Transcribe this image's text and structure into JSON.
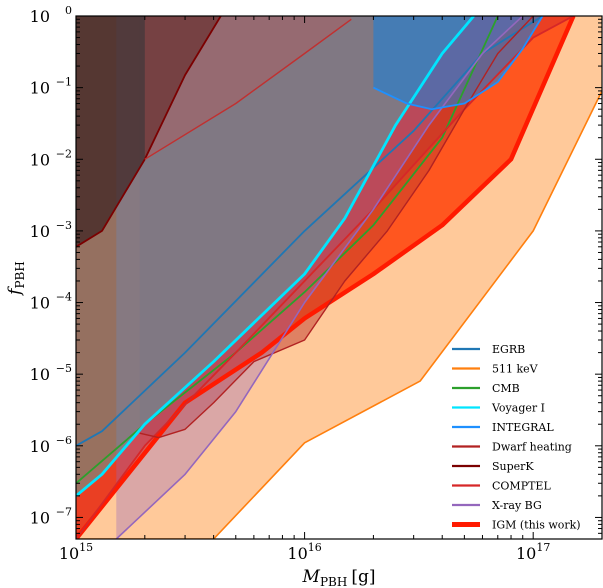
{
  "chart_data": {
    "type": "area",
    "title": "",
    "xlabel": "M",
    "xlabel_sub": "PBH",
    "xlabel_unit": "[g]",
    "ylabel": "f",
    "ylabel_sub": "PBH",
    "x_scale": "log",
    "y_scale": "log",
    "xlim": [
      1000000000000000.0,
      2e+17
    ],
    "ylim": [
      5e-08,
      1
    ],
    "grid": false,
    "legend_position": "bottom-right",
    "x_ticks": [
      {
        "value": 1000000000000000.0,
        "base": "10",
        "exp": "15"
      },
      {
        "value": 1e+16,
        "base": "10",
        "exp": "16"
      },
      {
        "value": 1e+17,
        "base": "10",
        "exp": "17"
      }
    ],
    "y_ticks": [
      {
        "value": 1e-07,
        "base": "10",
        "exp": "−7"
      },
      {
        "value": 1e-06,
        "base": "10",
        "exp": "−6"
      },
      {
        "value": 1e-05,
        "base": "10",
        "exp": "−5"
      },
      {
        "value": 0.0001,
        "base": "10",
        "exp": "−4"
      },
      {
        "value": 0.001,
        "base": "10",
        "exp": "−3"
      },
      {
        "value": 0.01,
        "base": "10",
        "exp": "−2"
      },
      {
        "value": 0.1,
        "base": "10",
        "exp": "−1"
      },
      {
        "value": 1,
        "base": "10",
        "exp": "0"
      }
    ],
    "series": [
      {
        "name": "511 keV",
        "color": "#ff7f0e",
        "fill_color": "#ffc99a",
        "fill_opacity": 1.0,
        "line_width": 1.6,
        "x": [
          1000000000000000.0,
          4000000000000000.0,
          1e+16,
          3.2e+16,
          1e+17,
          2e+17
        ],
        "y": [
          5e-08,
          5e-08,
          1.1e-06,
          8e-06,
          0.001,
          0.09
        ]
      },
      {
        "name": "CMB",
        "color": "#2ca02c",
        "fill_color": "#2ca02c",
        "fill_opacity": 0.45,
        "line_width": 1.8,
        "x": [
          1000000000000000.0,
          2000000000000000.0,
          5000000000000000.0,
          1e+16,
          2e+16,
          4e+16,
          7e+16
        ],
        "y": [
          3e-07,
          2e-06,
          2e-05,
          0.00014,
          0.0012,
          0.02,
          1
        ]
      },
      {
        "name": "EGRB",
        "color": "#1f77b4",
        "fill_color": "#1f77b4",
        "fill_opacity": 0.35,
        "line_width": 1.8,
        "x": [
          1000000000000000.0,
          1300000000000000.0,
          3000000000000000.0,
          1e+16,
          3e+16,
          6e+16,
          1.1e+17
        ],
        "y": [
          1e-06,
          1.6e-06,
          2e-05,
          0.001,
          0.025,
          0.3,
          1
        ]
      },
      {
        "name": "IGM (this work)",
        "color": "#ff1a00",
        "fill_color": "#ff3a00",
        "fill_opacity": 0.8,
        "line_width": 4.5,
        "x": [
          1000000000000000.0,
          3000000000000000.0,
          6500000000000000.0,
          1e+16,
          2e+16,
          4e+16,
          8e+16,
          1.5e+17
        ],
        "y": [
          5e-08,
          4e-06,
          2e-05,
          6e-05,
          0.00025,
          0.0012,
          0.01,
          1
        ]
      },
      {
        "name": "COMPTEL",
        "color": "#d62728",
        "fill_color": "#d62728",
        "fill_opacity": 0.5,
        "line_width": 1.8,
        "x": [
          1000000000000000.0,
          2000000000000000.0,
          5000000000000000.0,
          1e+16,
          2e+16,
          5e+16,
          1e+17,
          1.5e+17
        ],
        "y": [
          5e-08,
          1e-06,
          2e-05,
          0.0002,
          0.002,
          0.05,
          0.5,
          1
        ]
      },
      {
        "name": "Dwarf heating",
        "color": "#b22222",
        "fill_color": "#c0392b",
        "fill_opacity": 0.5,
        "line_width": 1.4,
        "x": [
          1900000000000000.0,
          2300000000000000.0,
          3000000000000000.0,
          4000000000000000.0,
          6000000000000000.0,
          1e+16,
          1.5e+16,
          2.3e+16,
          3.5e+16,
          5e+16,
          7e+16,
          1e+17
        ],
        "y": [
          1.5e-06,
          1.3e-06,
          1.7e-06,
          4e-06,
          1.5e-05,
          3e-05,
          0.0002,
          0.001,
          0.007,
          0.05,
          0.3,
          1
        ]
      },
      {
        "name": "X-ray BG",
        "color": "#9467bd",
        "fill_color": "#9467bd",
        "fill_opacity": 0.35,
        "line_width": 1.6,
        "x": [
          1500000000000000.0,
          3000000000000000.0,
          5000000000000000.0,
          1e+16,
          2e+16,
          3.5e+16,
          6e+16,
          9e+16
        ],
        "y": [
          5e-08,
          4e-07,
          3e-06,
          0.0001,
          0.002,
          0.03,
          0.3,
          1
        ]
      },
      {
        "name": "Voyager I",
        "color": "#00e5ff",
        "fill_color": "#2bc0c0",
        "fill_opacity": 0.4,
        "line_width": 2.8,
        "x": [
          1000000000000000.0,
          1300000000000000.0,
          2000000000000000.0,
          4000000000000000.0,
          1e+16,
          1.5e+16,
          2.5e+16,
          4e+16,
          5.5e+16
        ],
        "y": [
          2e-07,
          4e-07,
          2e-06,
          1.5e-05,
          0.00025,
          0.0015,
          0.03,
          0.3,
          1
        ]
      },
      {
        "name": "INTEGRAL",
        "color": "#1e90ff",
        "fill_color": "#1e7fd6",
        "fill_opacity": 0.6,
        "line_width": 1.8,
        "x": [
          2e+16,
          2.8e+16,
          3.6e+16,
          5e+16,
          7e+16,
          9e+16,
          1.1e+17
        ],
        "y": [
          0.1,
          0.06,
          0.05,
          0.06,
          0.12,
          0.35,
          1
        ]
      },
      {
        "name": "SuperK",
        "color": "#7b0000",
        "fill_color": "#3a2020",
        "fill_opacity": 0.7,
        "line_width": 1.8,
        "x": [
          1000000000000000.0,
          1300000000000000.0,
          2000000000000000.0,
          3000000000000000.0,
          4300000000000000.0
        ],
        "y": [
          0.0006,
          0.001,
          0.01,
          0.15,
          1
        ]
      },
      {
        "name": "COMPTEL",
        "color": "#c03030",
        "fill_color": "#c05050",
        "fill_opacity": 0.35,
        "line_width": 1.4,
        "x": [
          2000000000000000.0,
          5000000000000000.0,
          1e+16,
          1.6e+16
        ],
        "y": [
          0.01,
          0.06,
          0.3,
          0.9
        ]
      }
    ],
    "legend": [
      "EGRB",
      "511 keV",
      "CMB",
      "Voyager I",
      "INTEGRAL",
      "Dwarf heating",
      "SuperK",
      "COMPTEL",
      "X-ray BG",
      "IGM (this work)"
    ],
    "legend_colors": [
      "#1f77b4",
      "#ff7f0e",
      "#2ca02c",
      "#00e5ff",
      "#1e90ff",
      "#b22222",
      "#7b0000",
      "#d62728",
      "#9467bd",
      "#ff1a00"
    ]
  }
}
